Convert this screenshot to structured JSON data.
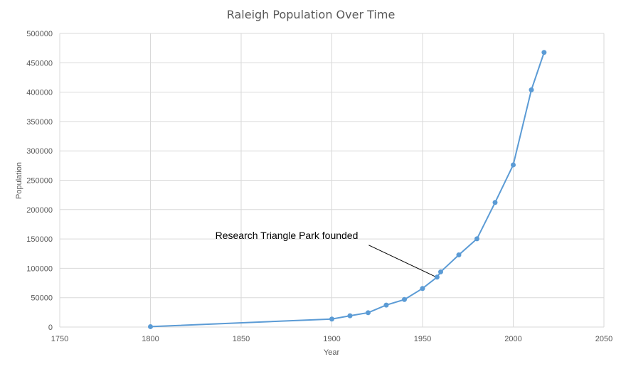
{
  "chart_data": {
    "type": "scatter",
    "title": "Raleigh Population Over Time",
    "xlabel": "Year",
    "ylabel": "Population",
    "xlim": [
      1750,
      2050
    ],
    "ylim": [
      0,
      500000
    ],
    "x_ticks": [
      1750,
      1800,
      1850,
      1900,
      1950,
      2000,
      2050
    ],
    "y_ticks": [
      0,
      50000,
      100000,
      150000,
      200000,
      250000,
      300000,
      350000,
      400000,
      450000,
      500000
    ],
    "grid": true,
    "legend": "none",
    "series": [
      {
        "x": [
          1800,
          1900,
          1910,
          1920,
          1930,
          1940,
          1950,
          1958,
          1960,
          1970,
          1980,
          1990,
          2000,
          2010,
          2017
        ],
        "y": [
          669,
          13643,
          19218,
          24418,
          37379,
          46897,
          65679,
          85000,
          93931,
          122830,
          150255,
          212092,
          276093,
          403892,
          467665
        ],
        "color": "#5b9bd5"
      }
    ],
    "annotations": [
      {
        "text": "Research Triangle Park founded",
        "x": 1958,
        "y": 85000
      }
    ]
  }
}
